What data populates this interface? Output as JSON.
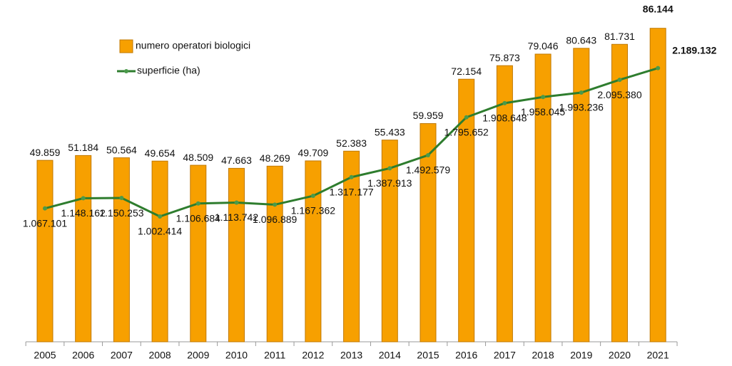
{
  "chart_data": {
    "type": "bar_line",
    "categories": [
      "2005",
      "2006",
      "2007",
      "2008",
      "2009",
      "2010",
      "2011",
      "2012",
      "2013",
      "2014",
      "2015",
      "2016",
      "2017",
      "2018",
      "2019",
      "2020",
      "2021"
    ],
    "ylim": [
      0,
      90000
    ],
    "y2lim": [
      0,
      2620000
    ],
    "series": [
      {
        "name": "numero operatori biologici",
        "type": "bar",
        "color": "#f7a000",
        "values": [
          49859,
          51184,
          50564,
          49654,
          48509,
          47663,
          48269,
          49709,
          52383,
          55433,
          59959,
          72154,
          75873,
          79046,
          80643,
          81731,
          86144
        ],
        "value_labels": [
          "49.859",
          "51.184",
          "50.564",
          "49.654",
          "48.509",
          "47.663",
          "48.269",
          "49.709",
          "52.383",
          "55.433",
          "59.959",
          "72.154",
          "75.873",
          "79.046",
          "80.643",
          "81.731",
          "86.144"
        ]
      },
      {
        "name": "superficie (ha)",
        "type": "line",
        "axis": "y2",
        "color": "#2e7d2e",
        "values": [
          1067101,
          1148162,
          1150253,
          1002414,
          1106684,
          1113742,
          1096889,
          1167362,
          1317177,
          1387913,
          1492579,
          1795652,
          1908648,
          1958045,
          1993236,
          2095380,
          2189132
        ],
        "value_labels": [
          "1.067.101",
          "1.148.162",
          "1.150.253",
          "1.002.414",
          "1.106.684",
          "1.113.742",
          "1.096.889",
          "1.167.362",
          "1.317.177",
          "1.387.913",
          "1.492.579",
          "1.795.652",
          "1.908.648",
          "1.958.045",
          "1.993.236",
          "2.095.380",
          "2.189.132"
        ]
      }
    ]
  }
}
